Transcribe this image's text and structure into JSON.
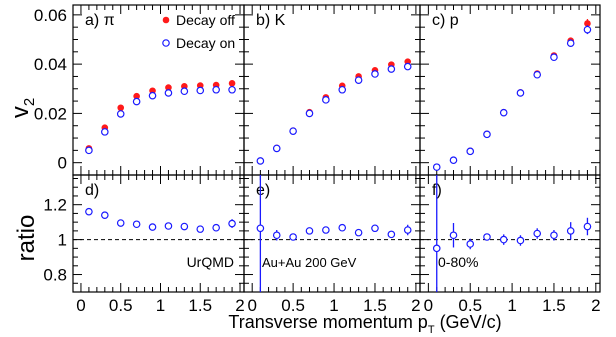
{
  "figure": {
    "xlabel": "Transverse momentum p",
    "xlabel_sub": "T",
    "xlabel_unit": " (GeV/c)",
    "ylabel_top": "v",
    "ylabel_top_sub": "2",
    "ylabel_bottom": "ratio"
  },
  "colors": {
    "decay_off": "#ff1a1a",
    "decay_on": "#1a1aff",
    "ratio": "#1a1aff"
  },
  "legend": {
    "decay_off": "Decay off",
    "decay_on": "Decay on"
  },
  "chart_data": [
    {
      "type": "scatter",
      "panel": "a) π",
      "xlim": [
        -0.1,
        2.05
      ],
      "ylim": [
        -0.005,
        0.064
      ],
      "yticks": [
        0,
        0.02,
        0.04,
        0.06
      ],
      "ytick_labels": [
        "0",
        "0.02",
        "0.04",
        "0.06"
      ],
      "legend_position": "top-right",
      "series": [
        {
          "name": "Decay off",
          "x": [
            0.1,
            0.3,
            0.5,
            0.7,
            0.9,
            1.1,
            1.3,
            1.5,
            1.7,
            1.9
          ],
          "y": [
            0.0058,
            0.0142,
            0.0223,
            0.027,
            0.0292,
            0.0305,
            0.031,
            0.0313,
            0.0315,
            0.0322
          ],
          "yerr": [
            0,
            0,
            0,
            0,
            0,
            0,
            0,
            0,
            0,
            0.0011
          ]
        },
        {
          "name": "Decay on",
          "x": [
            0.1,
            0.3,
            0.5,
            0.7,
            0.9,
            1.1,
            1.3,
            1.5,
            1.7,
            1.9
          ],
          "y": [
            0.005,
            0.0125,
            0.0198,
            0.0248,
            0.0272,
            0.0283,
            0.029,
            0.0293,
            0.0296,
            0.0296
          ],
          "yerr": [
            0,
            0,
            0,
            0,
            0,
            0,
            0,
            0,
            0,
            0.0011
          ]
        }
      ]
    },
    {
      "type": "scatter",
      "panel": "b) K",
      "xlim": [
        -0.1,
        2.05
      ],
      "ylim": [
        -0.005,
        0.064
      ],
      "series": [
        {
          "name": "Decay off",
          "x": [
            0.1,
            0.3,
            0.5,
            0.7,
            0.9,
            1.1,
            1.3,
            1.5,
            1.7,
            1.9
          ],
          "y": [
            0.0008,
            0.006,
            0.013,
            0.0205,
            0.0265,
            0.0312,
            0.035,
            0.0375,
            0.0398,
            0.041
          ]
        },
        {
          "name": "Decay on",
          "x": [
            0.1,
            0.3,
            0.5,
            0.7,
            0.9,
            1.1,
            1.3,
            1.5,
            1.7,
            1.9
          ],
          "y": [
            0.0007,
            0.0058,
            0.0128,
            0.02,
            0.0255,
            0.0296,
            0.0335,
            0.036,
            0.038,
            0.039
          ]
        }
      ]
    },
    {
      "type": "scatter",
      "panel": "c) p",
      "xlim": [
        -0.1,
        2.05
      ],
      "ylim": [
        -0.005,
        0.064
      ],
      "series": [
        {
          "name": "Decay off",
          "x": [
            0.1,
            0.3,
            0.5,
            0.7,
            0.9,
            1.1,
            1.3,
            1.5,
            1.7,
            1.9
          ],
          "y": [
            -0.0018,
            0.001,
            0.0048,
            0.0117,
            0.0205,
            0.0285,
            0.0362,
            0.0435,
            0.0495,
            0.0565
          ],
          "yerr": [
            0,
            0,
            0,
            0,
            0,
            0,
            0,
            0,
            0,
            0.0018
          ]
        },
        {
          "name": "Decay on",
          "x": [
            0.1,
            0.3,
            0.5,
            0.7,
            0.9,
            1.1,
            1.3,
            1.5,
            1.7,
            1.9
          ],
          "y": [
            -0.0018,
            0.001,
            0.0046,
            0.0115,
            0.0203,
            0.0283,
            0.0357,
            0.0428,
            0.0485,
            0.054
          ],
          "yerr": [
            0,
            0,
            0,
            0,
            0,
            0,
            0,
            0,
            0,
            0.0018
          ]
        }
      ]
    },
    {
      "type": "scatter",
      "panel": "d)",
      "xlim": [
        -0.1,
        2.05
      ],
      "ylim": [
        0.7,
        1.37
      ],
      "yticks": [
        0.8,
        1,
        1.2
      ],
      "ytick_labels": [
        "0.8",
        "1",
        "1.2"
      ],
      "xticks": [
        0,
        0.5,
        1,
        1.5,
        2
      ],
      "xtick_labels": [
        "0",
        "0.5",
        "1",
        "1.5",
        "2"
      ],
      "reference_line": 1,
      "annotation": "UrQMD",
      "series": [
        {
          "name": "Decay on / Decay off",
          "x": [
            0.1,
            0.3,
            0.5,
            0.7,
            0.9,
            1.1,
            1.3,
            1.5,
            1.7,
            1.9
          ],
          "y": [
            1.16,
            1.14,
            1.095,
            1.088,
            1.072,
            1.078,
            1.075,
            1.06,
            1.068,
            1.092
          ],
          "yerr": [
            0.012,
            0.01,
            0.008,
            0.008,
            0.008,
            0.008,
            0.01,
            0.015,
            0.02,
            0.025
          ]
        }
      ]
    },
    {
      "type": "scatter",
      "panel": "e)",
      "xlim": [
        -0.1,
        2.05
      ],
      "ylim": [
        0.7,
        1.37
      ],
      "xticks": [
        0,
        0.5,
        1,
        1.5,
        2
      ],
      "xtick_labels": [
        "0",
        "0.5",
        "1",
        "1.5",
        "2"
      ],
      "reference_line": 1,
      "annotation": "Au+Au 200 GeV",
      "series": [
        {
          "name": "Decay on / Decay off",
          "x": [
            0.1,
            0.3,
            0.5,
            0.7,
            0.9,
            1.1,
            1.3,
            1.5,
            1.7,
            1.9
          ],
          "y": [
            1.065,
            1.025,
            1.015,
            1.05,
            1.055,
            1.068,
            1.04,
            1.065,
            1.03,
            1.055
          ],
          "yerr": [
            0.9,
            0.03,
            0.01,
            0.01,
            0.01,
            0.01,
            0.015,
            0.02,
            0.02,
            0.03
          ]
        }
      ]
    },
    {
      "type": "scatter",
      "panel": "f)",
      "xlim": [
        -0.1,
        2.05
      ],
      "ylim": [
        0.7,
        1.37
      ],
      "xticks": [
        0,
        0.5,
        1,
        1.5,
        2
      ],
      "xtick_labels": [
        "0",
        "0.5",
        "1",
        "1.5",
        "2"
      ],
      "reference_line": 1,
      "annotation": "0-80%",
      "series": [
        {
          "name": "Decay on / Decay off",
          "x": [
            0.1,
            0.3,
            0.5,
            0.7,
            0.9,
            1.1,
            1.3,
            1.5,
            1.7,
            1.9
          ],
          "y": [
            0.95,
            1.025,
            0.975,
            1.015,
            1.0,
            0.995,
            1.035,
            1.025,
            1.05,
            1.075
          ],
          "yerr": [
            0.9,
            0.07,
            0.03,
            0.02,
            0.03,
            0.03,
            0.03,
            0.03,
            0.05,
            0.05
          ]
        }
      ]
    }
  ]
}
